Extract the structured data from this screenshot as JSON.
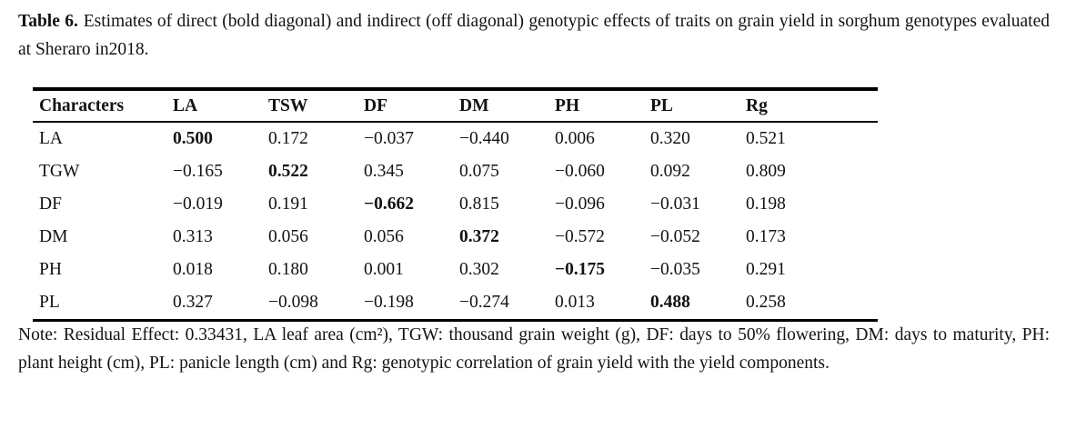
{
  "colors": {
    "background": "#ffffff",
    "text": "#131313",
    "rule": "#000000"
  },
  "caption": {
    "label": "Table 6.",
    "text": "Estimates of direct (bold diagonal) and indirect (off diagonal) genotypic effects of traits on grain yield in sorghum genotypes evaluated at Sheraro in2018."
  },
  "table": {
    "columns": [
      "Characters",
      "LA",
      "TSW",
      "DF",
      "DM",
      "PH",
      "PL",
      "Rg"
    ],
    "rows": [
      {
        "label": "LA",
        "values": [
          "0.500",
          "0.172",
          "−0.037",
          "−0.440",
          "0.006",
          "0.320",
          "0.521"
        ],
        "bold_value_index": 0
      },
      {
        "label": "TGW",
        "values": [
          "−0.165",
          "0.522",
          "0.345",
          "0.075",
          "−0.060",
          "0.092",
          "0.809"
        ],
        "bold_value_index": 1
      },
      {
        "label": "DF",
        "values": [
          "−0.019",
          "0.191",
          "−0.662",
          "0.815",
          "−0.096",
          "−0.031",
          "0.198"
        ],
        "bold_value_index": 2
      },
      {
        "label": "DM",
        "values": [
          "0.313",
          "0.056",
          "0.056",
          "0.372",
          "−0.572",
          "−0.052",
          "0.173"
        ],
        "bold_value_index": 3
      },
      {
        "label": "PH",
        "values": [
          "0.018",
          "0.180",
          "0.001",
          "0.302",
          "−0.175",
          "−0.035",
          "0.291"
        ],
        "bold_value_index": 4
      },
      {
        "label": "PL",
        "values": [
          "0.327",
          "−0.098",
          "−0.198",
          "−0.274",
          "0.013",
          "0.488",
          "0.258"
        ],
        "bold_value_index": 5
      }
    ]
  },
  "note": {
    "text": "Note: Residual Effect: 0.33431, LA leaf area (cm²), TGW: thousand grain weight (g), DF: days to 50% flowering, DM: days to maturity, PH: plant height (cm), PL: panicle length (cm) and Rg: genotypic correlation of grain yield with the yield components."
  }
}
